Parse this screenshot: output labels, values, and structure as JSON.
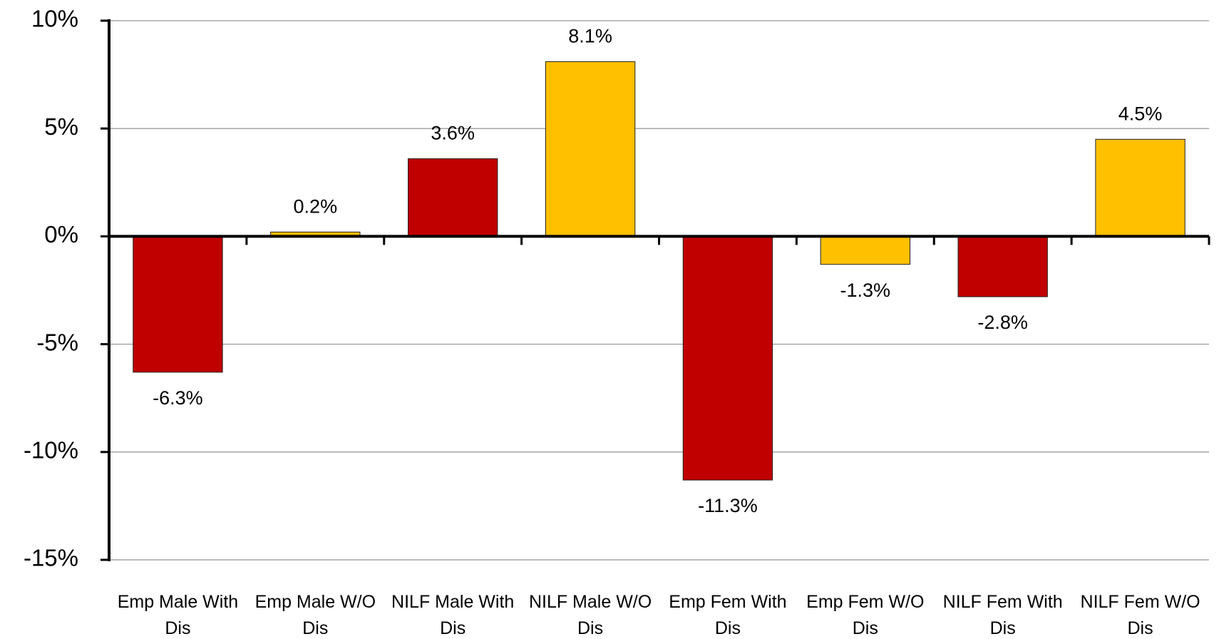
{
  "chart_data": {
    "type": "bar",
    "categories": [
      "Emp Male With Dis",
      "Emp Male W/O Dis",
      "NILF Male With Dis",
      "NILF Male W/O Dis",
      "Emp Fem With Dis",
      "Emp Fem W/O Dis",
      "NILF Fem With Dis",
      "NILF Fem W/O Dis"
    ],
    "values": [
      -6.3,
      0.2,
      3.6,
      8.1,
      -11.3,
      -1.3,
      -2.8,
      4.5
    ],
    "value_labels": [
      "-6.3%",
      "0.2%",
      "3.6%",
      "8.1%",
      "-11.3%",
      "-1.3%",
      "-2.8%",
      "4.5%"
    ],
    "colors": [
      "#c00000",
      "#ffc000",
      "#c00000",
      "#ffc000",
      "#c00000",
      "#ffc000",
      "#c00000",
      "#ffc000"
    ],
    "ylim": [
      -15,
      10
    ],
    "yticks": [
      {
        "value": -15,
        "label": "-15%"
      },
      {
        "value": -10,
        "label": "-10%"
      },
      {
        "value": -5,
        "label": "-5%"
      },
      {
        "value": 0,
        "label": "0%"
      },
      {
        "value": 5,
        "label": "5%"
      },
      {
        "value": 10,
        "label": "10%"
      }
    ],
    "grid": true
  }
}
